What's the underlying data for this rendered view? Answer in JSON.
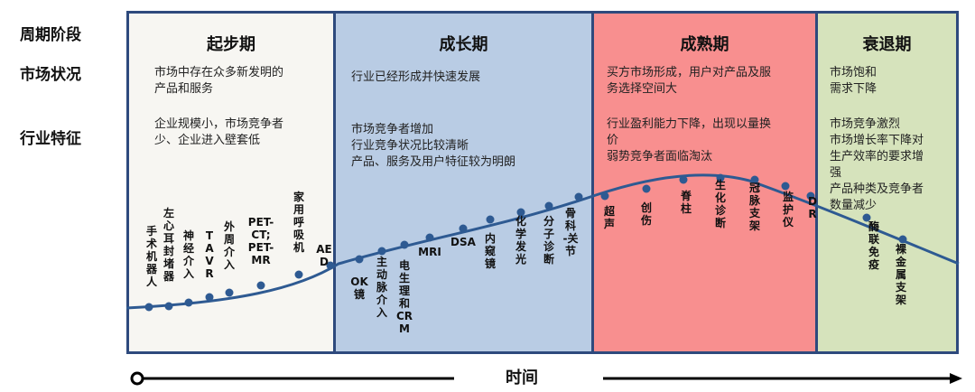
{
  "row_labels": {
    "phase": "周期阶段",
    "market": "市场状况",
    "industry": "行业特征"
  },
  "stages": [
    {
      "title": "起步期",
      "bg": "#f7f6f2",
      "market": "市场中存在众多新发明的\n产品和服务",
      "industry": "企业规模小，市场竞争者\n少、企业进入壁套低"
    },
    {
      "title": "成长期",
      "bg": "#b9cce4",
      "market": "行业已经形成并快速发展",
      "industry": "市场竞争者增加\n行业竞争状况比较清晰\n产品、服务及用户特征较为明朗"
    },
    {
      "title": "成熟期",
      "bg": "#f88f8f",
      "market": "买方市场形成，用户对产品及服\n务选择空间大",
      "industry": "行业盈利能力下降，出现以量换\n价\n弱势竞争者面临淘汰"
    },
    {
      "title": "衰退期",
      "bg": "#d6e3bc",
      "market": "市场饱和\n需求下降",
      "industry": "市场竞争激烈\n市场增长率下降对\n生产效率的要求增\n强\n产品种类及竞争者\n数量减少"
    }
  ],
  "colors": {
    "border": "#2e4a7d",
    "curve": "#2e5a92",
    "dot": "#2e5a92"
  },
  "points": [
    {
      "label": "手\n术\n机\n器\n人"
    },
    {
      "label": "左\n心\n耳\n封\n堵\n器"
    },
    {
      "label": "神\n经\n介\n入"
    },
    {
      "label": "T\nA\nV\nR"
    },
    {
      "label": "外\n周\n介\n入"
    },
    {
      "label": "PET-\nCT;\nPET-\nMR"
    },
    {
      "label": "家\n用\n呼\n吸\n机"
    },
    {
      "label": "AE\nD"
    },
    {
      "label": "OK\n镜"
    },
    {
      "label": "主\n动\n脉\n介\n入"
    },
    {
      "label": "电\n生\n理\n和\nCR\nM"
    },
    {
      "label": "MRI"
    },
    {
      "label": "DSA"
    },
    {
      "label": "内\n窥\n镜"
    },
    {
      "label": "化\n学\n发\n光"
    },
    {
      "label": "分\n子\n诊\n断"
    },
    {
      "label": "骨\n科\n-关\n节"
    },
    {
      "label": "超\n声"
    },
    {
      "label": "创\n伤"
    },
    {
      "label": "脊\n柱"
    },
    {
      "label": "生\n化\n诊\n断"
    },
    {
      "label": "冠\n脉\n支\n架"
    },
    {
      "label": "监\n护\n仪"
    },
    {
      "label": "D\nR"
    },
    {
      "label": "酶\n联\n免\n疫"
    },
    {
      "label": "裸\n金\n属\n支\n架"
    }
  ],
  "time_label": "时间"
}
